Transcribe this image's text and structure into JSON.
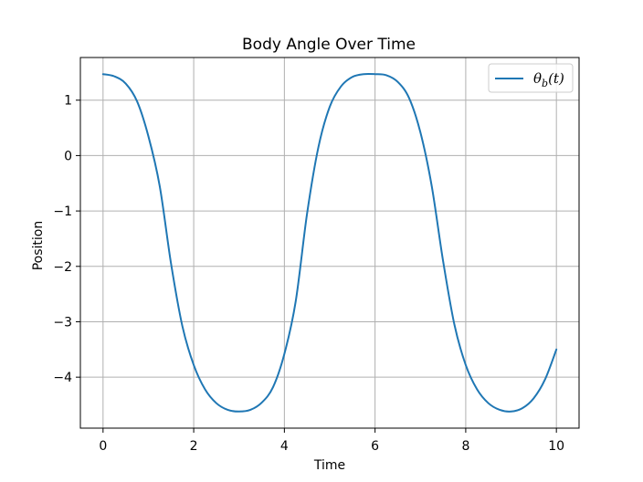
{
  "chart_data": {
    "type": "line",
    "title": "Body Angle Over Time",
    "xlabel": "Time",
    "ylabel": "Position",
    "xlim": [
      -0.5,
      10.5
    ],
    "ylim": [
      -4.92,
      1.77
    ],
    "xticks": [
      0,
      2,
      4,
      6,
      8,
      10
    ],
    "xtick_labels": [
      "0",
      "2",
      "4",
      "6",
      "8",
      "10"
    ],
    "yticks": [
      1,
      0,
      -1,
      -2,
      -3,
      -4
    ],
    "ytick_labels": [
      "1",
      "0",
      "−1",
      "−2",
      "−3",
      "−4"
    ],
    "grid": true,
    "legend_position": "top-right",
    "colors": {
      "series": "#1f77b4",
      "grid": "#b0b0b0",
      "axes": "#000000"
    },
    "series": [
      {
        "name": "θ_b(t)",
        "label_base": "θ",
        "label_sub": "b",
        "label_suffix": "(t)",
        "x": [
          0,
          0.25,
          0.5,
          0.75,
          1.0,
          1.25,
          1.5,
          1.75,
          2.0,
          2.25,
          2.5,
          2.75,
          3.0,
          3.25,
          3.5,
          3.75,
          4.0,
          4.25,
          4.5,
          4.75,
          5.0,
          5.25,
          5.5,
          5.75,
          6.0,
          6.25,
          6.5,
          6.75,
          7.0,
          7.25,
          7.5,
          7.75,
          8.0,
          8.25,
          8.5,
          8.75,
          9.0,
          9.25,
          9.5,
          9.75,
          10.0
        ],
        "y": [
          1.47,
          1.43,
          1.3,
          0.98,
          0.35,
          -0.55,
          -1.95,
          -3.08,
          -3.78,
          -4.22,
          -4.47,
          -4.59,
          -4.62,
          -4.59,
          -4.46,
          -4.18,
          -3.58,
          -2.63,
          -1.05,
          0.15,
          0.88,
          1.25,
          1.42,
          1.47,
          1.47,
          1.45,
          1.33,
          1.04,
          0.42,
          -0.55,
          -1.9,
          -3.05,
          -3.78,
          -4.22,
          -4.47,
          -4.59,
          -4.62,
          -4.56,
          -4.38,
          -4.04,
          -3.5
        ]
      }
    ]
  }
}
